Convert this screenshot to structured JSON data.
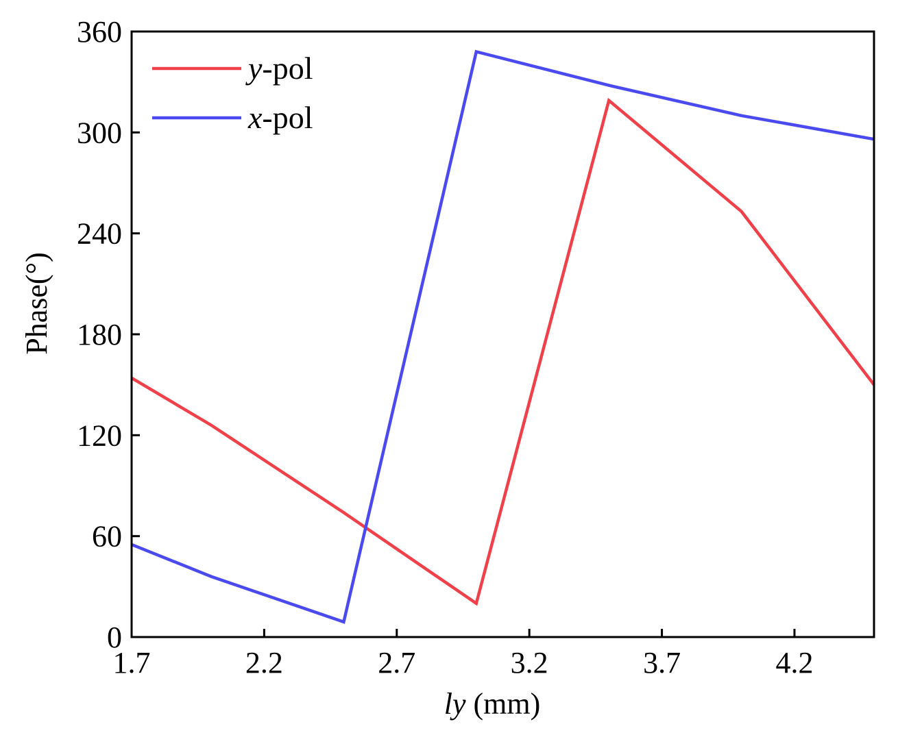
{
  "chart_data": {
    "type": "line",
    "xlabel": {
      "italic": "ly",
      "rest": " (mm)"
    },
    "ylabel": "Phase(°)",
    "xlim": [
      1.7,
      4.5
    ],
    "ylim": [
      0,
      360
    ],
    "xticks": [
      1.7,
      2.2,
      2.7,
      3.2,
      3.7,
      4.2
    ],
    "xtick_labels": [
      "1.7",
      "2.2",
      "2.7",
      "3.2",
      "3.7",
      "4.2"
    ],
    "yticks": [
      0,
      60,
      120,
      180,
      240,
      300,
      360
    ],
    "ytick_labels": [
      "0",
      "60",
      "120",
      "180",
      "240",
      "300",
      "360"
    ],
    "grid": false,
    "legend_position": "top-left",
    "series": [
      {
        "name": "y-pol",
        "legend_italic": "y",
        "legend_rest": "-pol",
        "color": "#f0404a",
        "x": [
          1.7,
          2.0,
          2.5,
          3.0,
          3.5,
          4.0,
          4.5
        ],
        "y": [
          154,
          126,
          74,
          20,
          319,
          253,
          150
        ]
      },
      {
        "name": "x-pol",
        "legend_italic": "x",
        "legend_rest": "-pol",
        "color": "#4a4af0",
        "x": [
          1.7,
          2.0,
          2.5,
          3.0,
          3.5,
          4.0,
          4.5
        ],
        "y": [
          55,
          36,
          9,
          348,
          328,
          310,
          296
        ]
      }
    ]
  }
}
